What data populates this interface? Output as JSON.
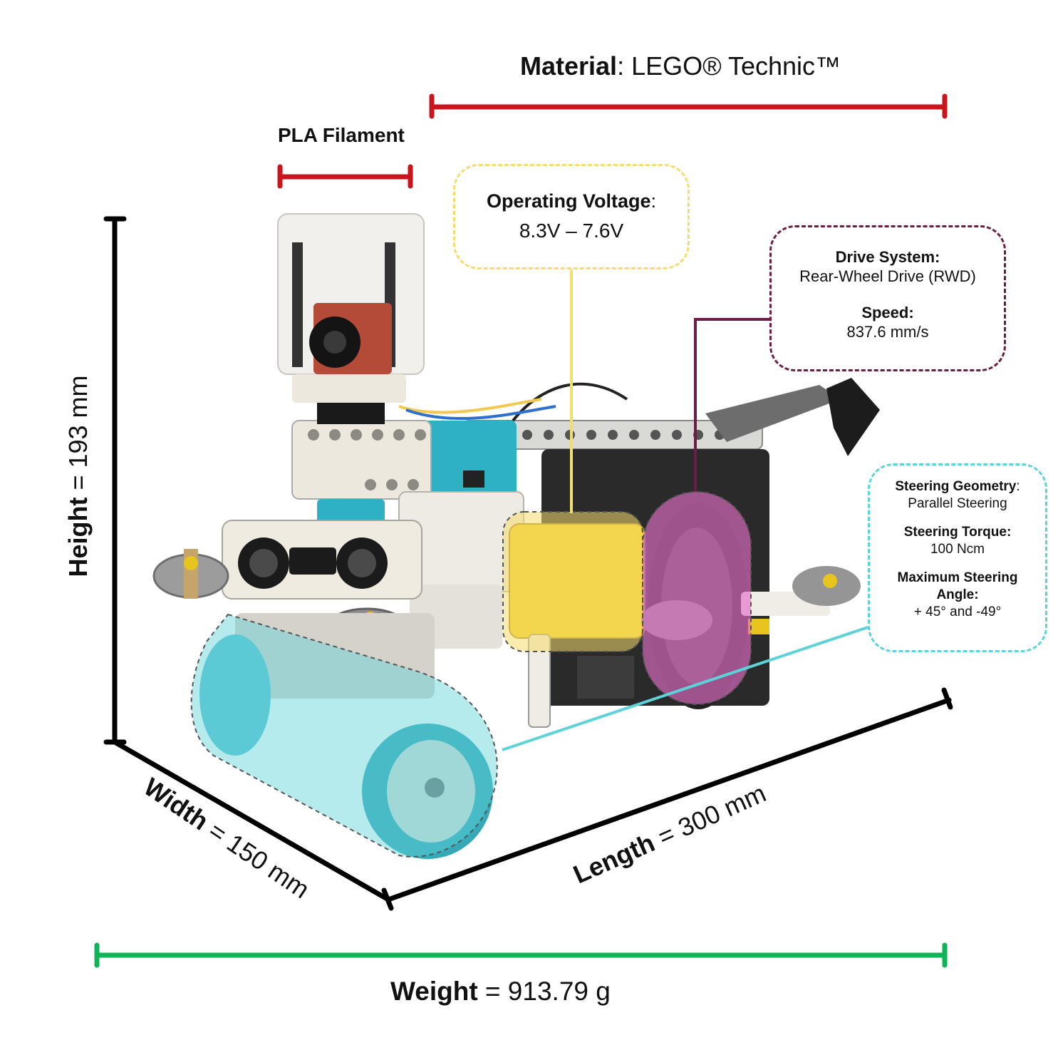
{
  "material": {
    "label": "Material",
    "value": ": LEGO® Technic™"
  },
  "pla": {
    "label": "PLA Filament"
  },
  "dimensions": {
    "height": {
      "label": "Height",
      "value": " = 193 mm"
    },
    "width": {
      "label": "Width",
      "value": " = 150 mm"
    },
    "length": {
      "label": "Length",
      "value": " = 300 mm"
    }
  },
  "weight": {
    "label": "Weight",
    "value": " = 913.79 g"
  },
  "voltage": {
    "label": "Operating Voltage",
    "colon": ":",
    "value": "8.3V – 7.6V"
  },
  "drive": {
    "system_label": "Drive System:",
    "system_value": "Rear-Wheel Drive (RWD)",
    "speed_label": "Speed:",
    "speed_value": "837.6 mm/s"
  },
  "steering": {
    "geometry_label": "Steering Geometry",
    "geometry_colon": ":",
    "geometry_value": "Parallel Steering",
    "torque_label": "Steering Torque:",
    "torque_value": "100 Ncm",
    "angle_label_1": "Maximum Steering",
    "angle_label_2": "Angle:",
    "angle_value": "+ 45° and -49°"
  },
  "colors": {
    "material_bar": "#c8161d",
    "pla_bar": "#c8161d",
    "weight_bar": "#0fb457",
    "dimension_lines": "#000000",
    "voltage_accent": "#f6dc6c",
    "drive_accent": "#6b1e43",
    "steering_accent": "#5dd3d9",
    "rear_wheel_highlight": "#e36fc7"
  }
}
